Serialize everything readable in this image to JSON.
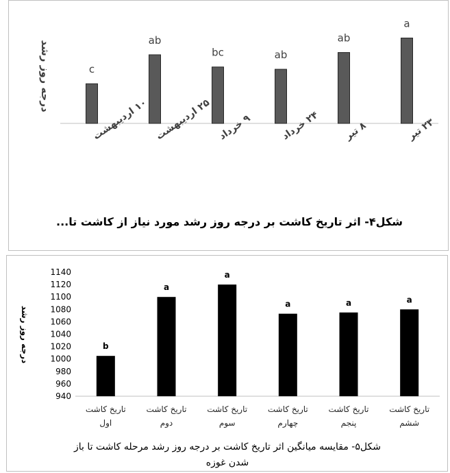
{
  "chart_data": [
    {
      "type": "bar",
      "categories": [
        "۱۰ اردیبهشت",
        "۲۵ اردیبهشت",
        "۹ خرداد",
        "۲۴ خرداد",
        "۸ تیر",
        "۲۳ تیر"
      ],
      "values": [
        52,
        90,
        74,
        71,
        93,
        112
      ],
      "significance": [
        "c",
        "ab",
        "bc",
        "ab",
        "ab",
        "a"
      ],
      "ylabel": "درجه روز رشد",
      "xlabel": "",
      "title": "",
      "caption": "شکل۴- اثر تاریخ کاشت بر درجه روز رشد مورد نیاز از کاشت تا...",
      "y_axis_visible": false,
      "bar_color": "#595959",
      "grid": false
    },
    {
      "type": "bar",
      "categories": [
        [
          "تاریخ کاشت",
          "اول"
        ],
        [
          "تاریخ کاشت",
          "دوم"
        ],
        [
          "تاریخ کاشت",
          "سوم"
        ],
        [
          "تاریخ کاشت",
          "چهارم"
        ],
        [
          "تاریخ کاشت",
          "پنجم"
        ],
        [
          "تاریخ کاشت",
          "ششم"
        ]
      ],
      "values": [
        1005,
        1100,
        1120,
        1073,
        1075,
        1080
      ],
      "significance": [
        "b",
        "a",
        "a",
        "a",
        "a",
        "a"
      ],
      "ylabel": "درجه روز رشد",
      "xlabel": "",
      "title": "",
      "ylim": [
        940,
        1140
      ],
      "yticks": [
        940,
        960,
        980,
        1000,
        1020,
        1040,
        1060,
        1080,
        1100,
        1120,
        1140
      ],
      "caption_lines": [
        "شکل۵- مقایسه میانگین اثر تاریخ کاشت بر درجه روز رشد مرحله کاشت تا باز",
        "شدن غوزه"
      ],
      "bar_color": "#000000",
      "grid": false
    }
  ]
}
